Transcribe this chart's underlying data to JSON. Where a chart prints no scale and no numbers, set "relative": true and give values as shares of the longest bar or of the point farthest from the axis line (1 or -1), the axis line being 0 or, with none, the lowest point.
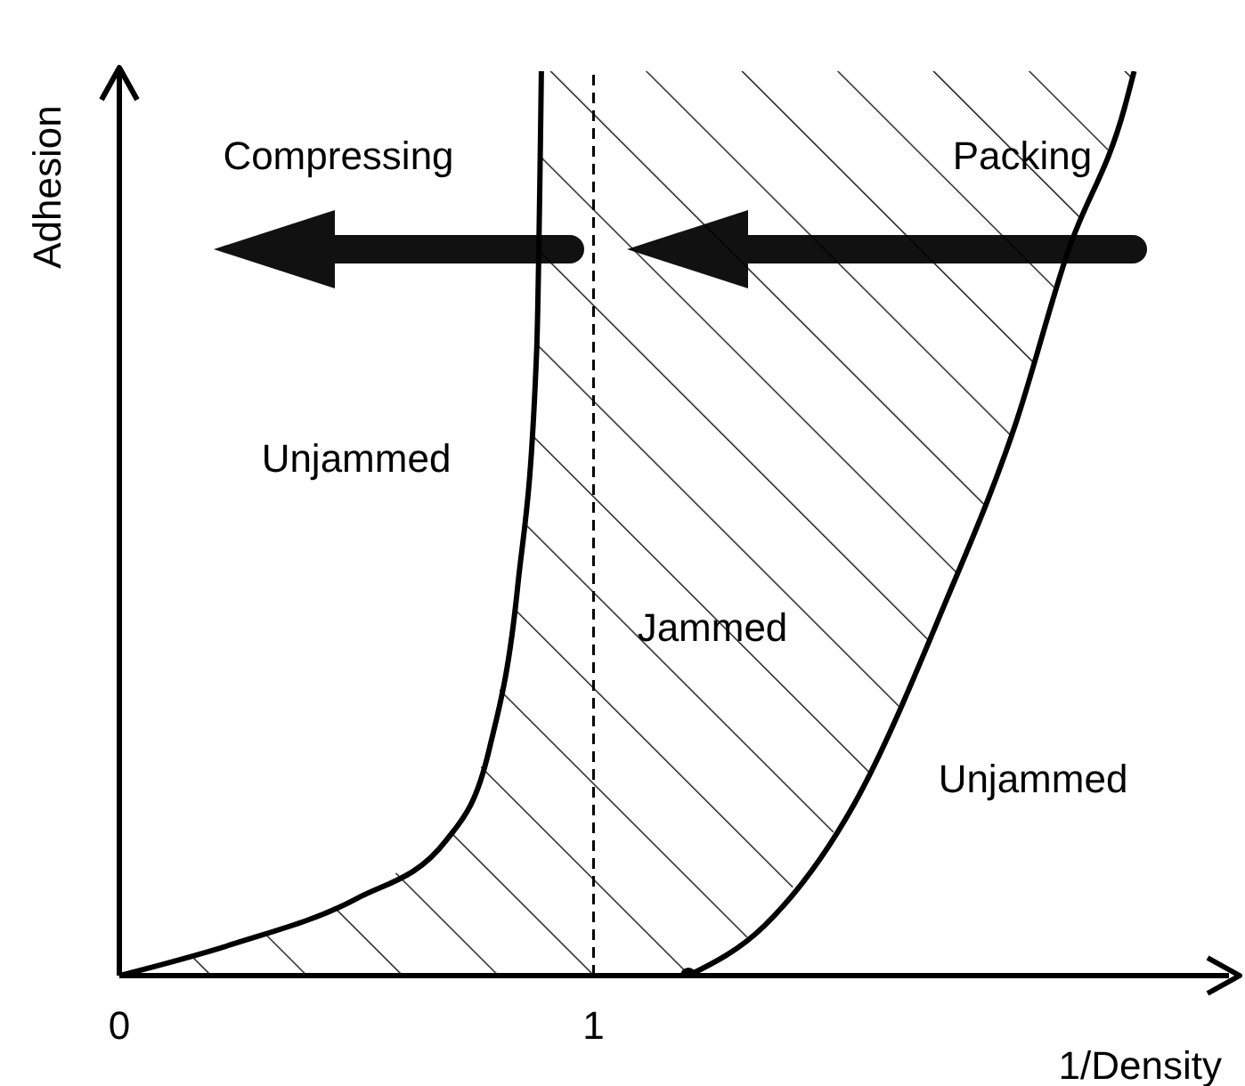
{
  "chart_data": {
    "type": "line",
    "xlabel": "1/Density",
    "ylabel": "Adhesion",
    "relative": true,
    "xlim": [
      0,
      2.34
    ],
    "xticks": [
      0,
      1
    ],
    "tick_labels": "x",
    "grid": false,
    "legend": false,
    "marker": "none",
    "line_style": "solid",
    "ref_lines": [
      {
        "axis": "x",
        "value": 1,
        "line_style": "dashed",
        "color": "#000000"
      }
    ],
    "annotations": [
      "Compressing",
      "Packing",
      "Unjammed",
      "Jammed",
      "Unjammed"
    ],
    "series": [
      {
        "color": "#000000",
        "x": [
          0,
          0.24,
          0.5,
          0.69,
          0.78,
          0.84,
          0.88,
          0.89
        ],
        "values": [
          0,
          0.035,
          0.085,
          0.15,
          0.25,
          0.43,
          0.69,
          1
        ]
      },
      {
        "color": "#000000",
        "x": [
          1.2,
          1.36,
          1.55,
          1.74,
          1.89,
          2.0,
          2.12,
          2.14
        ],
        "values": [
          0,
          0.055,
          0.19,
          0.41,
          0.61,
          0.8,
          0.96,
          1
        ]
      },
      {
        "type": "scatter",
        "color": "#000000",
        "marker": "circle",
        "x": [
          1.2
        ],
        "values": [
          0
        ]
      },
      {
        "type": "area",
        "color": "#000000",
        "x": [
          0,
          0.24,
          0.5,
          0.69,
          0.78,
          0.84,
          0.88,
          0.89,
          1.2,
          1.36,
          1.55,
          1.74,
          1.89,
          2.0,
          2.12,
          2.14
        ],
        "values": [
          null,
          null,
          null,
          null,
          null,
          null,
          null,
          null,
          null,
          null,
          null,
          null,
          null,
          null,
          null,
          null
        ],
        "lower": [
          0,
          0,
          0,
          0,
          0,
          0,
          0,
          0,
          0,
          0.055,
          0.19,
          0.41,
          0.61,
          0.8,
          0.96,
          1
        ],
        "upper": [
          0,
          0.035,
          0.085,
          0.15,
          0.25,
          0.43,
          0.69,
          1,
          1,
          1,
          1,
          1,
          1,
          1,
          1,
          1
        ]
      }
    ]
  }
}
